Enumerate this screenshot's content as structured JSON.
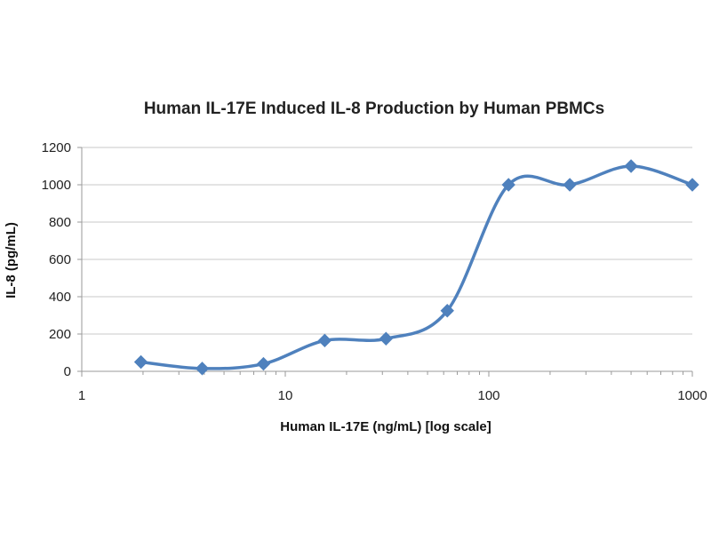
{
  "chart_data": {
    "type": "line",
    "title": "Human IL-17E Induced IL-8 Production by Human PBMCs",
    "xlabel": "Human IL-17E (ng/mL) [log scale]",
    "ylabel": "IL-8 (pg/mL)",
    "x_scale": "log",
    "xlim": [
      1,
      1000
    ],
    "ylim": [
      0,
      1200
    ],
    "x_ticks": [
      1,
      10,
      100,
      1000
    ],
    "x_tick_labels": [
      "1",
      "10",
      "100",
      "1000"
    ],
    "y_ticks": [
      0,
      200,
      400,
      600,
      800,
      1000,
      1200
    ],
    "y_tick_labels": [
      "0",
      "200",
      "400",
      "600",
      "800",
      "1000",
      "1200"
    ],
    "grid": "horizontal",
    "legend": "none",
    "series_color": "#4f81bd",
    "series": [
      {
        "x": [
          1.953,
          3.906,
          7.8125,
          15.625,
          31.25,
          62.5,
          125,
          250,
          500,
          1000
        ],
        "y": [
          50,
          15,
          40,
          165,
          175,
          325,
          1000,
          1000,
          1100,
          1000
        ]
      }
    ]
  }
}
